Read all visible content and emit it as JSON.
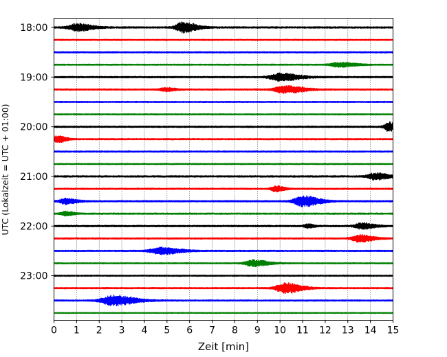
{
  "chart_data": {
    "type": "line",
    "title": "",
    "xlabel": "Zeit  [min]",
    "ylabel": "UTC (Lokalzeit = UTC + 01:00)",
    "xlim": [
      0,
      15
    ],
    "x_ticks": [
      "0",
      "1",
      "2",
      "3",
      "4",
      "5",
      "6",
      "7",
      "8",
      "9",
      "10",
      "11",
      "12",
      "13",
      "14",
      "15"
    ],
    "y_tick_labels": [
      "18:00",
      "19:00",
      "20:00",
      "21:00",
      "22:00",
      "23:00"
    ],
    "grid": "vertical dotted lines at each minute",
    "trace_colors": [
      "#000000",
      "#ff0000",
      "#0000ff",
      "#008000"
    ],
    "trace_interval_min": 15,
    "traces": [
      {
        "start": "18:00",
        "color": "#000000",
        "noise": 0.22,
        "events": [
          {
            "t": 1.0,
            "amp": 0.95,
            "width": 0.6
          },
          {
            "t": 5.7,
            "amp": 1.4,
            "width": 0.5
          }
        ]
      },
      {
        "start": "18:15",
        "color": "#ff0000",
        "noise": 0.18,
        "events": []
      },
      {
        "start": "18:30",
        "color": "#0000ff",
        "noise": 0.2,
        "events": []
      },
      {
        "start": "18:45",
        "color": "#008000",
        "noise": 0.18,
        "events": [
          {
            "t": 12.6,
            "amp": 0.6,
            "width": 0.6
          }
        ]
      },
      {
        "start": "19:00",
        "color": "#000000",
        "noise": 0.22,
        "events": [
          {
            "t": 10.0,
            "amp": 1.0,
            "width": 0.7
          }
        ]
      },
      {
        "start": "19:15",
        "color": "#ff0000",
        "noise": 0.2,
        "events": [
          {
            "t": 4.9,
            "amp": 0.45,
            "width": 0.35
          },
          {
            "t": 10.2,
            "amp": 1.0,
            "width": 0.7
          }
        ]
      },
      {
        "start": "19:30",
        "color": "#0000ff",
        "noise": 0.18,
        "events": []
      },
      {
        "start": "19:45",
        "color": "#008000",
        "noise": 0.18,
        "events": []
      },
      {
        "start": "20:00",
        "color": "#000000",
        "noise": 0.22,
        "events": [
          {
            "t": 14.8,
            "amp": 1.2,
            "width": 0.3
          }
        ]
      },
      {
        "start": "20:15",
        "color": "#ff0000",
        "noise": 0.2,
        "events": [
          {
            "t": 0.15,
            "amp": 0.9,
            "width": 0.3
          }
        ]
      },
      {
        "start": "20:30",
        "color": "#0000ff",
        "noise": 0.2,
        "events": []
      },
      {
        "start": "20:45",
        "color": "#008000",
        "noise": 0.18,
        "events": []
      },
      {
        "start": "21:00",
        "color": "#000000",
        "noise": 0.22,
        "events": [
          {
            "t": 14.2,
            "amp": 0.9,
            "width": 0.5
          }
        ]
      },
      {
        "start": "21:15",
        "color": "#ff0000",
        "noise": 0.2,
        "events": [
          {
            "t": 9.8,
            "amp": 0.75,
            "width": 0.3
          }
        ]
      },
      {
        "start": "21:30",
        "color": "#0000ff",
        "noise": 0.22,
        "events": [
          {
            "t": 0.5,
            "amp": 0.75,
            "width": 0.4
          },
          {
            "t": 11.0,
            "amp": 1.4,
            "width": 0.6
          }
        ]
      },
      {
        "start": "21:45",
        "color": "#008000",
        "noise": 0.2,
        "events": [
          {
            "t": 0.5,
            "amp": 0.55,
            "width": 0.3
          }
        ]
      },
      {
        "start": "22:00",
        "color": "#000000",
        "noise": 0.22,
        "events": [
          {
            "t": 11.2,
            "amp": 0.5,
            "width": 0.25
          },
          {
            "t": 13.6,
            "amp": 0.8,
            "width": 0.45
          }
        ]
      },
      {
        "start": "22:15",
        "color": "#ff0000",
        "noise": 0.2,
        "events": [
          {
            "t": 13.5,
            "amp": 1.0,
            "width": 0.5
          }
        ]
      },
      {
        "start": "22:30",
        "color": "#0000ff",
        "noise": 0.2,
        "events": [
          {
            "t": 4.7,
            "amp": 0.9,
            "width": 0.7
          }
        ]
      },
      {
        "start": "22:45",
        "color": "#008000",
        "noise": 0.18,
        "events": [
          {
            "t": 8.8,
            "amp": 0.85,
            "width": 0.55
          }
        ]
      },
      {
        "start": "23:00",
        "color": "#000000",
        "noise": 0.18,
        "events": []
      },
      {
        "start": "23:15",
        "color": "#ff0000",
        "noise": 0.2,
        "events": [
          {
            "t": 10.2,
            "amp": 1.4,
            "width": 0.6
          }
        ]
      },
      {
        "start": "23:30",
        "color": "#0000ff",
        "noise": 0.2,
        "events": [
          {
            "t": 2.6,
            "amp": 1.35,
            "width": 0.8
          }
        ]
      },
      {
        "start": "23:45",
        "color": "#008000",
        "noise": 0.15,
        "events": []
      }
    ]
  }
}
